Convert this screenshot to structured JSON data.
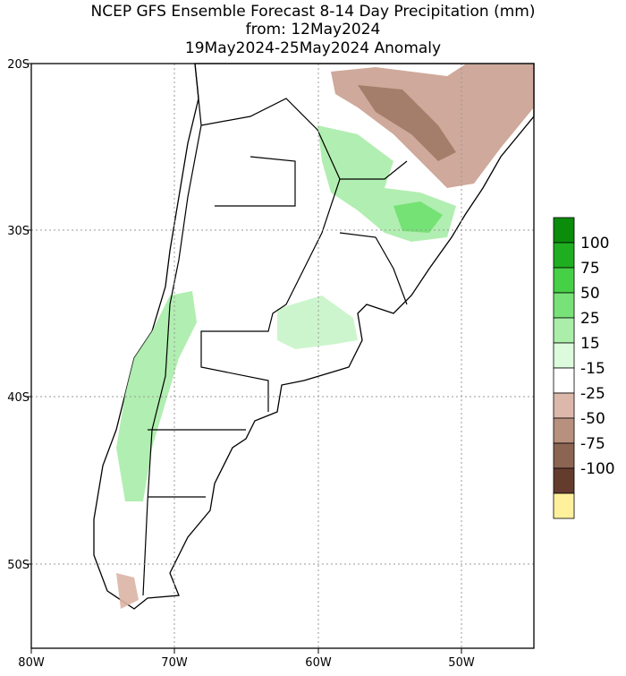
{
  "header": {
    "title": "NCEP GFS Ensemble Forecast 8-14 Day Precipitation (mm)",
    "from": "from: 12May2024",
    "period": "19May2024-25May2024 Anomaly"
  },
  "map": {
    "lat_labels": [
      "20S",
      "30S",
      "40S",
      "50S"
    ],
    "lon_labels": [
      "80W",
      "70W",
      "60W",
      "50W"
    ]
  },
  "legend": {
    "labels": [
      "100",
      "75",
      "50",
      "25",
      "15",
      "-15",
      "-25",
      "-50",
      "-75",
      "-100"
    ],
    "colors": [
      "#0b8c0b",
      "#1fae1f",
      "#46d046",
      "#78e278",
      "#aaeeaa",
      "#dcfadc",
      "#ffffff",
      "#dcb8aa",
      "#b8907e",
      "#8c6452",
      "#643c2e",
      "#fff09c"
    ]
  }
}
